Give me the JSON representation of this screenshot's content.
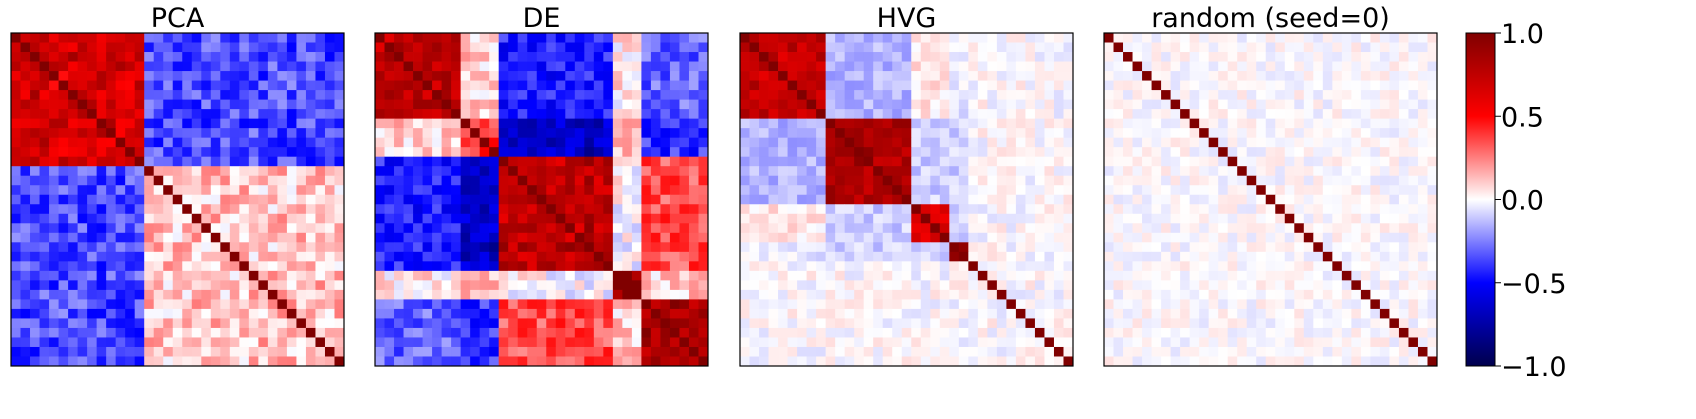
{
  "chart_data": {
    "type": "heatmap",
    "n": 35,
    "panels": [
      {
        "title": "PCA",
        "blocks": [
          [
            0,
            14,
            0.65
          ],
          [
            14,
            35,
            0.12
          ]
        ],
        "cross": [
          [
            0,
            1,
            -0.35
          ]
        ],
        "seed": 11,
        "noise": 0.15
      },
      {
        "title": "DE",
        "blocks": [
          [
            0,
            9,
            0.75
          ],
          [
            9,
            13,
            0.4
          ],
          [
            13,
            25,
            0.75
          ],
          [
            25,
            28,
            0.85
          ],
          [
            28,
            35,
            0.8
          ]
        ],
        "cross": [
          [
            0,
            1,
            0.1
          ],
          [
            0,
            2,
            -0.45
          ],
          [
            1,
            2,
            -0.7
          ],
          [
            0,
            3,
            0.05
          ],
          [
            1,
            3,
            0.1
          ],
          [
            2,
            3,
            0.0
          ],
          [
            0,
            4,
            -0.3
          ],
          [
            1,
            4,
            -0.4
          ],
          [
            2,
            4,
            0.35
          ],
          [
            3,
            4,
            0.1
          ]
        ],
        "seed": 23,
        "noise": 0.13
      },
      {
        "title": "HVG",
        "blocks": [
          [
            0,
            9,
            0.7
          ],
          [
            9,
            18,
            0.8
          ],
          [
            18,
            22,
            0.6
          ],
          [
            22,
            24,
            0.8
          ],
          [
            24,
            35,
            0.0
          ]
        ],
        "cross": [
          [
            0,
            1,
            -0.15
          ],
          [
            0,
            2,
            0.05
          ],
          [
            1,
            2,
            -0.1
          ],
          [
            0,
            3,
            -0.05
          ],
          [
            1,
            3,
            -0.1
          ],
          [
            2,
            3,
            -0.1
          ]
        ],
        "seed": 37,
        "noise": 0.07
      },
      {
        "title": "random (seed=0)",
        "blocks": [
          [
            0,
            35,
            0.0
          ]
        ],
        "cross": [],
        "seed": 5,
        "noise": 0.06
      }
    ],
    "colorbar": {
      "colormap": "seismic",
      "vmin": -1.0,
      "vmax": 1.0,
      "ticks": [
        "1.0",
        "0.5",
        "0.0",
        "−0.5",
        "−1.0"
      ]
    },
    "xticks": [],
    "yticks": []
  }
}
